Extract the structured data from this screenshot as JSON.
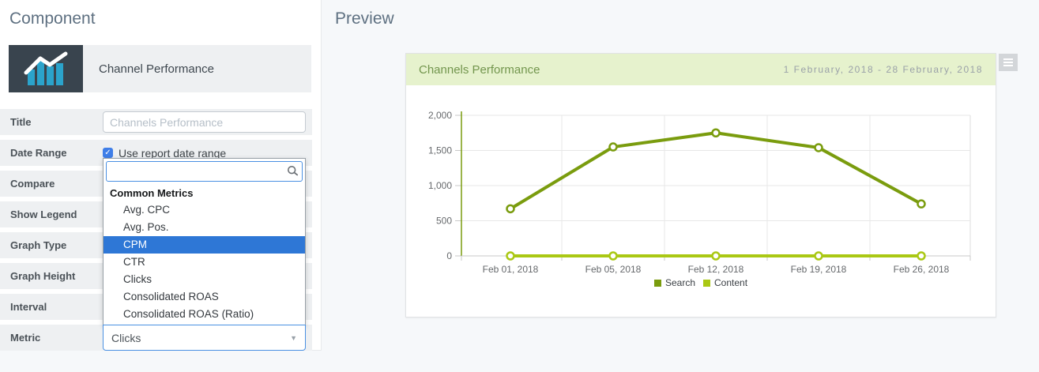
{
  "left_panel": {
    "heading": "Component",
    "component_card": {
      "label": "Channel Performance",
      "icon": "bar-chart-icon"
    },
    "rows": [
      {
        "label": "Title",
        "placeholder": "Channels Performance"
      },
      {
        "label": "Date Range",
        "checkbox_label": "Use report date range",
        "checked": true
      },
      {
        "label": "Compare"
      },
      {
        "label": "Show Legend"
      },
      {
        "label": "Graph Type"
      },
      {
        "label": "Graph Height"
      },
      {
        "label": "Interval"
      },
      {
        "label": "Metric",
        "value": "Clicks"
      }
    ],
    "metric_dropdown": {
      "search_value": "",
      "group_label": "Common Metrics",
      "options": [
        "Avg. CPC",
        "Avg. Pos.",
        "CPM",
        "CTR",
        "Clicks",
        "Consolidated ROAS",
        "Consolidated ROAS (Ratio)"
      ],
      "highlighted_option": "CPM"
    }
  },
  "preview": {
    "heading": "Preview",
    "card": {
      "title": "Channels Performance",
      "date_range": "1 February, 2018 - 28 February, 2018"
    }
  },
  "chart_data": {
    "type": "line",
    "title": "Channels Performance",
    "categories": [
      "Feb 01, 2018",
      "Feb 05, 2018",
      "Feb 12, 2018",
      "Feb 19, 2018",
      "Feb 26, 2018"
    ],
    "series": [
      {
        "name": "Search",
        "color": "#7a9c0e",
        "values": [
          670,
          1550,
          1750,
          1540,
          740
        ]
      },
      {
        "name": "Content",
        "color": "#aac814",
        "values": [
          0,
          0,
          0,
          0,
          0
        ]
      }
    ],
    "xlabel": "",
    "ylabel": "",
    "ylim": [
      0,
      2000
    ],
    "yticks": [
      0,
      500,
      1000,
      1500,
      2000
    ],
    "grid": true,
    "legend_position": "bottom"
  },
  "icons": {
    "component": "bar-chart",
    "search": "magnifier",
    "menu": "hamburger",
    "select_caret": "▾",
    "checkbox_check": "✓"
  },
  "colors": {
    "accent_blue": "#2e77d6",
    "focus_border": "#4a90e2",
    "header_green_bg": "#e6f2cd",
    "header_green_text": "#73964e",
    "series_search": "#7a9c0e",
    "series_content": "#aac814",
    "icon_box_bg": "#39444e",
    "icon_bars": "#2ba3cb"
  }
}
